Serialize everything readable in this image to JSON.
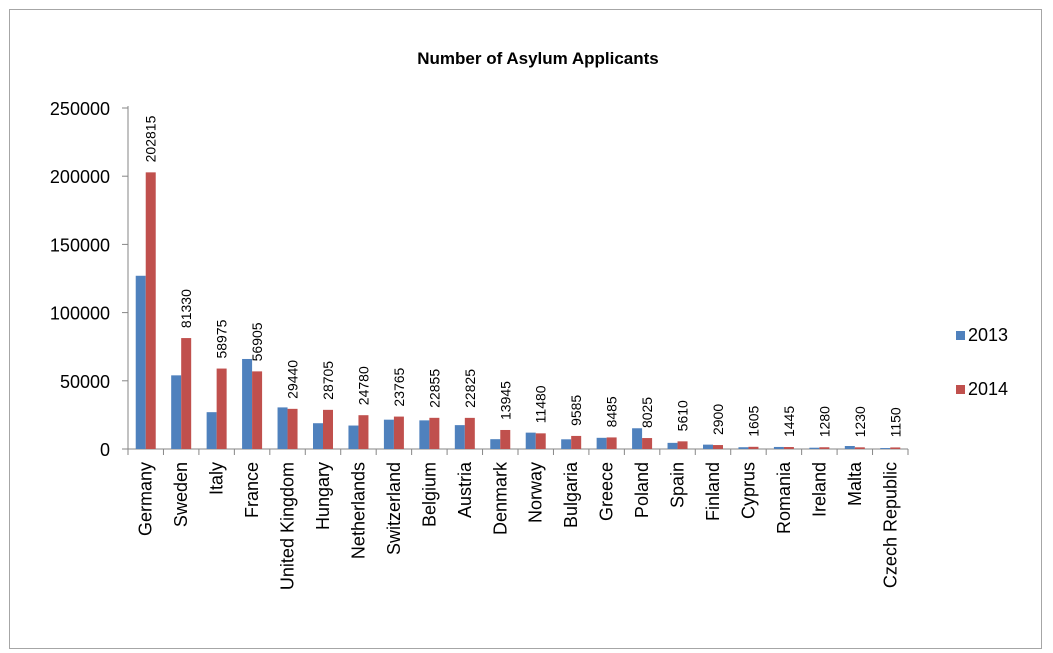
{
  "chart_data": {
    "type": "bar",
    "title": "Number of Asylum Applicants",
    "xlabel": "",
    "ylabel": "",
    "ylim": [
      0,
      250000
    ],
    "yticks": [
      0,
      50000,
      100000,
      150000,
      200000,
      250000
    ],
    "grid": false,
    "legend_position": "right",
    "categories": [
      "Germany",
      "Sweden",
      "Italy",
      "France",
      "United Kingdom",
      "Hungary",
      "Netherlands",
      "Switzerland",
      "Belgium",
      "Austria",
      "Denmark",
      "Norway",
      "Bulgaria",
      "Greece",
      "Poland",
      "Spain",
      "Finland",
      "Cyprus",
      "Romania",
      "Ireland",
      "Malta",
      "Czech Republic"
    ],
    "series": [
      {
        "name": "2013",
        "color": "#4f81bd",
        "values": [
          127000,
          54000,
          27000,
          66000,
          30500,
          18900,
          17200,
          21500,
          21000,
          17500,
          7200,
          12000,
          7100,
          8200,
          15200,
          4500,
          3200,
          1300,
          1500,
          950,
          2200,
          700
        ]
      },
      {
        "name": "2014",
        "color": "#c0504d",
        "values": [
          202815,
          81330,
          58975,
          56905,
          29440,
          28705,
          24780,
          23765,
          22855,
          22825,
          13945,
          11480,
          9585,
          8485,
          8025,
          5610,
          2900,
          1605,
          1445,
          1280,
          1230,
          1150
        ],
        "data_labels": [
          "202815",
          "81330",
          "58975",
          "56905",
          "29440",
          "28705",
          "24780",
          "23765",
          "22855",
          "22825",
          "13945",
          "11480",
          "9585",
          "8485",
          "8025",
          "5610",
          "2900",
          "1605",
          "1445",
          "1280",
          "1230",
          "1150"
        ]
      }
    ]
  }
}
